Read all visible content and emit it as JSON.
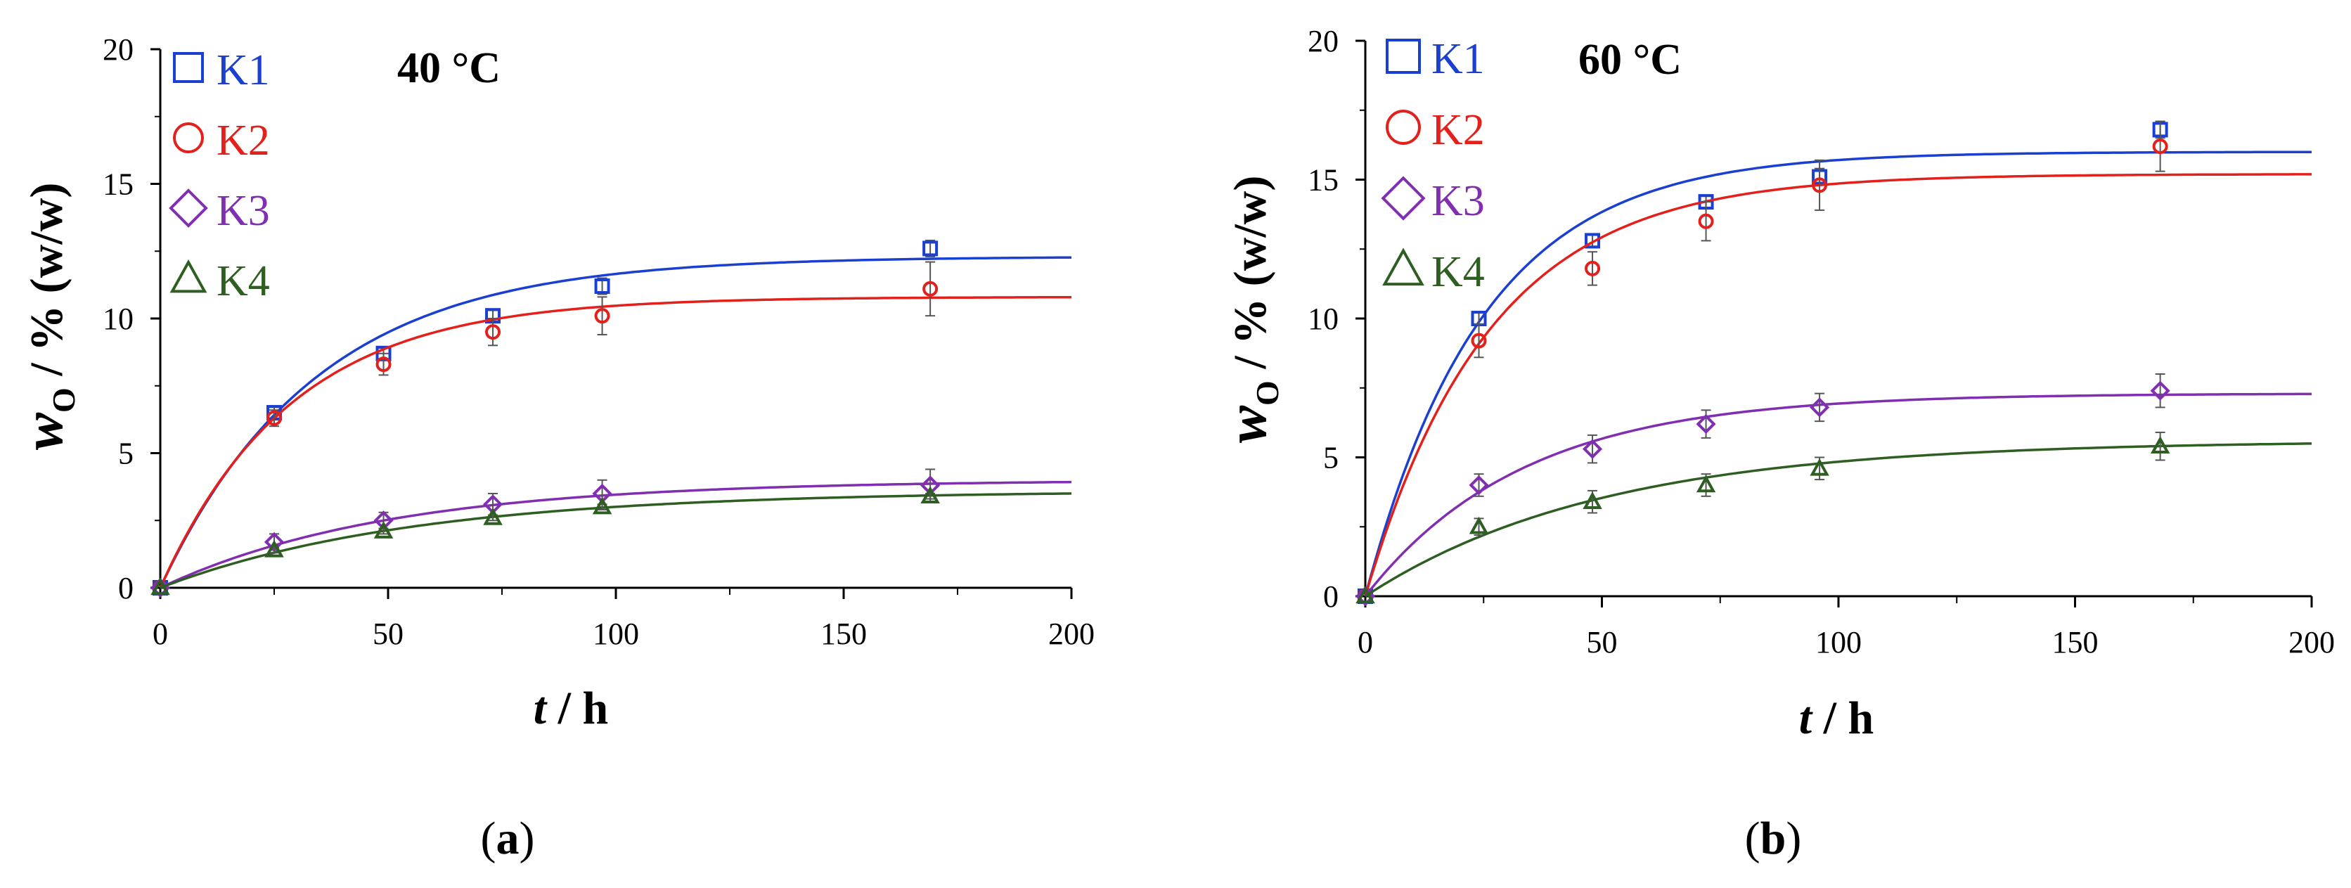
{
  "chart_data": [
    {
      "type": "scatter",
      "caption": "(a)",
      "caption_letter": "a",
      "temperature_label": "40 °C",
      "xlabel": "t / h",
      "xlabel_var": "t",
      "xlabel_unit": " / h",
      "ylabel": "wO / % (w/w)",
      "ylabel_var": "w",
      "ylabel_sub": "O",
      "ylabel_unit": " / % (w/w)",
      "xlim": [
        0,
        200
      ],
      "ylim": [
        0,
        20
      ],
      "xticks": [
        "0",
        "50",
        "100",
        "150",
        "200"
      ],
      "yticks": [
        "0",
        "5",
        "10",
        "15",
        "20"
      ],
      "series": [
        {
          "name": "K1",
          "marker": "square",
          "color": "#1a3fd1",
          "x": [
            0,
            25,
            49,
            73,
            97,
            169
          ],
          "y": [
            0,
            6.5,
            8.7,
            10.1,
            11.2,
            12.6
          ],
          "yerr": [
            0,
            0.2,
            0.2,
            0.2,
            0.3,
            0.3
          ],
          "fit": {
            "a": 12.3,
            "k": 0.0295
          }
        },
        {
          "name": "K2",
          "marker": "circle",
          "color": "#e3201b",
          "x": [
            0,
            25,
            49,
            73,
            97,
            169
          ],
          "y": [
            0,
            6.3,
            8.3,
            9.5,
            10.1,
            11.1
          ],
          "yerr": [
            0,
            0.3,
            0.4,
            0.5,
            0.7,
            1.0
          ],
          "fit": {
            "a": 10.8,
            "k": 0.035
          }
        },
        {
          "name": "K3",
          "marker": "diamond",
          "color": "#7f2fb0",
          "x": [
            0,
            25,
            49,
            73,
            97,
            169
          ],
          "y": [
            0,
            1.7,
            2.5,
            3.1,
            3.5,
            3.8
          ],
          "yerr": [
            0,
            0.3,
            0.3,
            0.4,
            0.5,
            0.6
          ],
          "fit": {
            "a": 4.0,
            "k": 0.02
          }
        },
        {
          "name": "K4",
          "marker": "triangle",
          "color": "#2e5e22",
          "x": [
            0,
            25,
            49,
            73,
            97,
            169
          ],
          "y": [
            0,
            1.4,
            2.1,
            2.6,
            3.0,
            3.4
          ],
          "yerr": [
            0,
            0.1,
            0.1,
            0.1,
            0.1,
            0.1
          ],
          "fit": {
            "a": 3.6,
            "k": 0.018
          }
        }
      ]
    },
    {
      "type": "scatter",
      "caption": "(b)",
      "caption_letter": "b",
      "temperature_label": "60 °C",
      "xlabel": "t / h",
      "xlabel_var": "t",
      "xlabel_unit": " / h",
      "ylabel": "wO / % (w/w)",
      "ylabel_var": "w",
      "ylabel_sub": "O",
      "ylabel_unit": " / % (w/w)",
      "xlim": [
        0,
        200
      ],
      "ylim": [
        0,
        20
      ],
      "xticks": [
        "0",
        "50",
        "100",
        "150",
        "200"
      ],
      "yticks": [
        "0",
        "5",
        "10",
        "15",
        "20"
      ],
      "series": [
        {
          "name": "K1",
          "marker": "square",
          "color": "#1a3fd1",
          "x": [
            0,
            24,
            48,
            72,
            96,
            168
          ],
          "y": [
            0,
            10.0,
            12.8,
            14.2,
            15.1,
            16.8
          ],
          "yerr": [
            0,
            0.2,
            0.2,
            0.2,
            0.3,
            0.3
          ],
          "fit": {
            "a": 16.0,
            "k": 0.04
          }
        },
        {
          "name": "K2",
          "marker": "circle",
          "color": "#e3201b",
          "x": [
            0,
            24,
            48,
            72,
            96,
            168
          ],
          "y": [
            0,
            9.2,
            11.8,
            13.5,
            14.8,
            16.2
          ],
          "yerr": [
            0,
            0.6,
            0.6,
            0.7,
            0.9,
            0.9
          ],
          "fit": {
            "a": 15.2,
            "k": 0.038
          }
        },
        {
          "name": "K3",
          "marker": "diamond",
          "color": "#7f2fb0",
          "x": [
            0,
            24,
            48,
            72,
            96,
            168
          ],
          "y": [
            0,
            4.0,
            5.3,
            6.2,
            6.8,
            7.4
          ],
          "yerr": [
            0,
            0.4,
            0.5,
            0.5,
            0.5,
            0.6
          ],
          "fit": {
            "a": 7.3,
            "k": 0.03
          }
        },
        {
          "name": "K4",
          "marker": "triangle",
          "color": "#2e5e22",
          "x": [
            0,
            24,
            48,
            72,
            96,
            168
          ],
          "y": [
            0,
            2.5,
            3.4,
            4.0,
            4.6,
            5.4
          ],
          "yerr": [
            0,
            0.3,
            0.4,
            0.4,
            0.4,
            0.5
          ],
          "fit": {
            "a": 5.6,
            "k": 0.02
          }
        }
      ]
    }
  ]
}
